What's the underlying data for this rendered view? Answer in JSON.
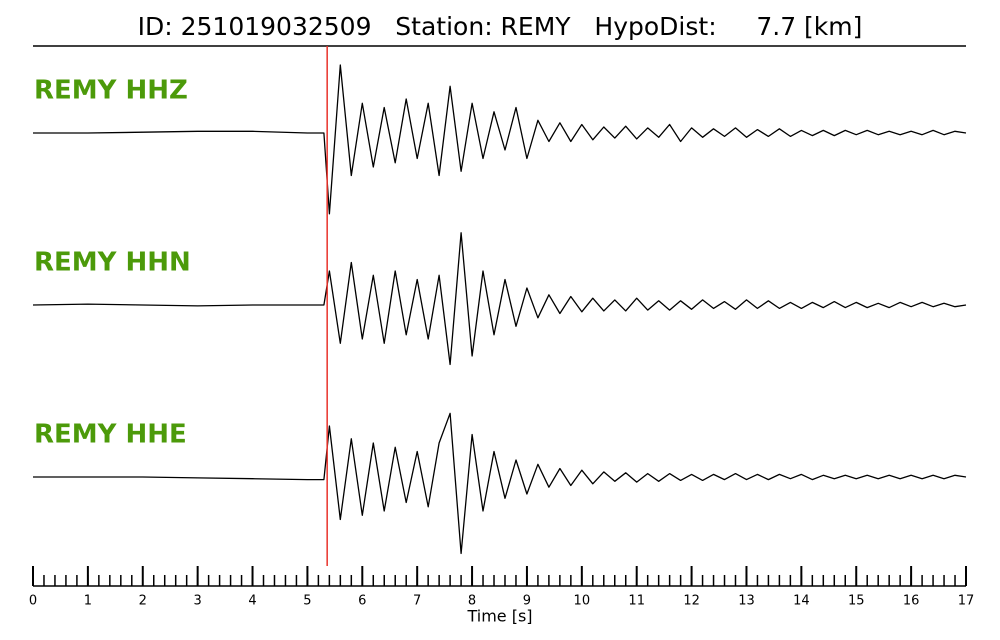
{
  "chart_data": {
    "type": "seismogram",
    "title": "ID: 251019032509   Station: REMY   HypoDist:     7.7 [km]",
    "xlabel": "Time [s]",
    "xlim": [
      0,
      17
    ],
    "xticks": [
      0,
      1,
      2,
      3,
      4,
      5,
      6,
      7,
      8,
      9,
      10,
      11,
      12,
      13,
      14,
      15,
      16,
      17
    ],
    "xminor_step": 0.2,
    "ylim": [
      -1,
      1
    ],
    "pick_time": 5.36,
    "pick_color": "#e8322a",
    "name_color": "#4c9a0a",
    "x": [
      0,
      1,
      2,
      3,
      4,
      5,
      5.3,
      5.4,
      5.6,
      5.8,
      6.0,
      6.2,
      6.4,
      6.6,
      6.8,
      7.0,
      7.2,
      7.4,
      7.6,
      7.8,
      8.0,
      8.2,
      8.4,
      8.6,
      8.8,
      9.0,
      9.2,
      9.4,
      9.6,
      9.8,
      10.0,
      10.2,
      10.4,
      10.6,
      10.8,
      11.0,
      11.2,
      11.4,
      11.6,
      11.8,
      12.0,
      12.2,
      12.4,
      12.6,
      12.8,
      13.0,
      13.2,
      13.4,
      13.6,
      13.8,
      14.0,
      14.2,
      14.4,
      14.6,
      14.8,
      15.0,
      15.2,
      15.4,
      15.6,
      15.8,
      16.0,
      16.2,
      16.4,
      16.6,
      16.8,
      17.0
    ],
    "series": [
      {
        "name": "REMY HHZ",
        "color": "#000000",
        "values": [
          0,
          0,
          0.01,
          0.02,
          0.02,
          0,
          0,
          -0.95,
          0.8,
          -0.5,
          0.35,
          -0.4,
          0.3,
          -0.35,
          0.4,
          -0.3,
          0.35,
          -0.5,
          0.55,
          -0.45,
          0.35,
          -0.3,
          0.25,
          -0.2,
          0.3,
          -0.3,
          0.15,
          -0.1,
          0.12,
          -0.1,
          0.1,
          -0.08,
          0.07,
          -0.06,
          0.08,
          -0.07,
          0.06,
          -0.05,
          0.1,
          -0.1,
          0.06,
          -0.05,
          0.05,
          -0.04,
          0.06,
          -0.05,
          0.04,
          -0.04,
          0.05,
          -0.04,
          0.03,
          -0.03,
          0.03,
          -0.03,
          0.03,
          -0.02,
          0.03,
          -0.02,
          0.02,
          -0.02,
          0.02,
          -0.02,
          0.03,
          -0.02,
          0.02,
          0
        ]
      },
      {
        "name": "REMY HHN",
        "color": "#000000",
        "values": [
          0,
          0.01,
          0,
          -0.01,
          0,
          0,
          0,
          0.4,
          -0.45,
          0.5,
          -0.4,
          0.35,
          -0.45,
          0.4,
          -0.35,
          0.3,
          -0.4,
          0.35,
          -0.7,
          0.85,
          -0.6,
          0.4,
          -0.35,
          0.3,
          -0.25,
          0.2,
          -0.15,
          0.12,
          -0.1,
          0.1,
          -0.08,
          0.08,
          -0.07,
          0.06,
          -0.07,
          0.08,
          -0.06,
          0.05,
          -0.06,
          0.05,
          -0.05,
          0.06,
          -0.04,
          0.04,
          -0.05,
          0.06,
          -0.04,
          0.05,
          -0.04,
          0.03,
          -0.04,
          0.03,
          -0.03,
          0.04,
          -0.03,
          0.03,
          -0.03,
          0.02,
          -0.03,
          0.03,
          -0.02,
          0.03,
          -0.02,
          0.02,
          -0.02,
          0
        ]
      },
      {
        "name": "REMY HHE",
        "color": "#000000",
        "values": [
          0,
          0,
          0,
          -0.01,
          -0.02,
          -0.03,
          -0.03,
          0.6,
          -0.5,
          0.45,
          -0.45,
          0.4,
          -0.4,
          0.35,
          -0.3,
          0.3,
          -0.35,
          0.4,
          0.75,
          -0.9,
          0.5,
          -0.4,
          0.3,
          -0.25,
          0.2,
          -0.2,
          0.15,
          -0.12,
          0.1,
          -0.1,
          0.08,
          -0.08,
          0.06,
          -0.05,
          0.05,
          -0.06,
          0.04,
          -0.05,
          0.04,
          -0.04,
          0.03,
          -0.04,
          0.03,
          -0.03,
          0.04,
          -0.03,
          0.03,
          -0.03,
          0.03,
          -0.02,
          0.03,
          -0.03,
          0.02,
          -0.02,
          0.02,
          -0.02,
          0.02,
          -0.02,
          0.02,
          -0.02,
          0.02,
          -0.02,
          0.02,
          -0.02,
          0.02,
          0
        ]
      }
    ]
  }
}
